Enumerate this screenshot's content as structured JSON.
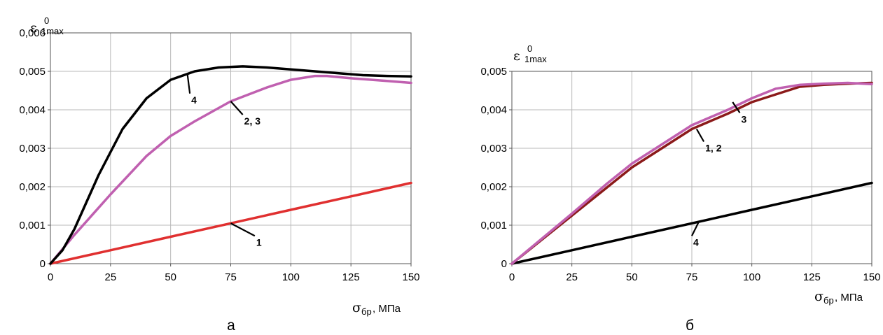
{
  "chart_data": [
    {
      "type": "line",
      "caption": "а",
      "ylabel": {
        "symbol": "ε",
        "sup": "0",
        "sub": "1max"
      },
      "xlabel": {
        "symbol": "σ",
        "sub": "бр",
        "unit": ", МПа"
      },
      "xlim": [
        0,
        150
      ],
      "ylim": [
        0,
        0.006
      ],
      "x_ticks": [
        "0",
        "25",
        "50",
        "75",
        "100",
        "125",
        "150"
      ],
      "y_ticks": [
        "0",
        "0,001",
        "0,002",
        "0,003",
        "0,004",
        "0,005",
        "0,006"
      ],
      "grid": true,
      "series": [
        {
          "name": "1",
          "color": "#e03030",
          "x": [
            0,
            25,
            50,
            75,
            100,
            125,
            150
          ],
          "y": [
            0,
            0.00035,
            0.0007,
            0.00105,
            0.0014,
            0.00175,
            0.0021
          ],
          "label_anchor": [
            75,
            0.00105
          ],
          "label_at": [
            85,
            0.00065
          ]
        },
        {
          "name": "2, 3",
          "color": "#c060b0",
          "x": [
            0,
            10,
            25,
            40,
            50,
            60,
            75,
            90,
            100,
            110,
            115,
            125,
            140,
            150
          ],
          "y": [
            0,
            0.00075,
            0.0018,
            0.0028,
            0.00332,
            0.0037,
            0.00422,
            0.00458,
            0.00478,
            0.00488,
            0.00488,
            0.00482,
            0.00475,
            0.0047
          ],
          "label_anchor": [
            75,
            0.00422
          ],
          "label_at": [
            80,
            0.0038
          ]
        },
        {
          "name": "4",
          "color": "#000000",
          "x": [
            0,
            5,
            10,
            15,
            20,
            25,
            30,
            40,
            50,
            60,
            70,
            80,
            90,
            100,
            110,
            120,
            130,
            140,
            150
          ],
          "y": [
            0,
            0.00035,
            0.0009,
            0.0016,
            0.0023,
            0.0029,
            0.0035,
            0.0043,
            0.00478,
            0.005,
            0.0051,
            0.00513,
            0.0051,
            0.00505,
            0.005,
            0.00495,
            0.0049,
            0.00488,
            0.00487
          ],
          "label_anchor": [
            57,
            0.00492
          ],
          "label_at": [
            58,
            0.00435
          ]
        }
      ]
    },
    {
      "type": "line",
      "caption": "б",
      "ylabel": {
        "symbol": "ε",
        "sup": "0",
        "sub": "1max"
      },
      "xlabel": {
        "symbol": "σ",
        "sub": "бр",
        "unit": ", МПа"
      },
      "xlim": [
        0,
        150
      ],
      "ylim": [
        0,
        0.005
      ],
      "x_ticks": [
        "0",
        "25",
        "50",
        "75",
        "100",
        "125",
        "150"
      ],
      "y_ticks": [
        "0",
        "0,001",
        "0,002",
        "0,003",
        "0,004",
        "0,005"
      ],
      "grid": true,
      "series": [
        {
          "name": "4",
          "color": "#000000",
          "x": [
            0,
            25,
            50,
            75,
            100,
            125,
            150
          ],
          "y": [
            0,
            0.00035,
            0.0007,
            0.00105,
            0.0014,
            0.00175,
            0.0021
          ],
          "label_anchor": [
            78,
            0.0011
          ],
          "label_at": [
            75,
            0.00065
          ]
        },
        {
          "name": "1, 2",
          "color": "#8b1a1a",
          "x": [
            0,
            10,
            25,
            40,
            50,
            60,
            75,
            90,
            100,
            110,
            120,
            130,
            140,
            150
          ],
          "y": [
            0,
            0.0005,
            0.00125,
            0.002,
            0.0025,
            0.0029,
            0.0035,
            0.0039,
            0.0042,
            0.0044,
            0.0046,
            0.00465,
            0.00468,
            0.0047
          ],
          "label_anchor": [
            77,
            0.0035
          ],
          "label_at": [
            80,
            0.0031
          ]
        },
        {
          "name": "3",
          "color": "#c060b0",
          "x": [
            0,
            10,
            25,
            40,
            50,
            60,
            75,
            90,
            100,
            110,
            120,
            130,
            140,
            150
          ],
          "y": [
            0,
            0.00052,
            0.0013,
            0.0021,
            0.0026,
            0.003,
            0.0036,
            0.004,
            0.0043,
            0.00455,
            0.00465,
            0.00468,
            0.0047,
            0.00467
          ],
          "label_anchor": [
            92,
            0.0042
          ],
          "label_at": [
            95,
            0.00385
          ]
        }
      ]
    }
  ]
}
